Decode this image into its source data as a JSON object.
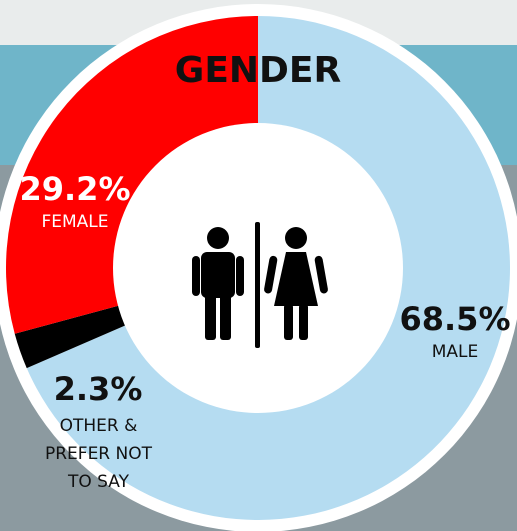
{
  "chart_data": {
    "type": "donut",
    "title": "GENDER",
    "categories": [
      "MALE",
      "OTHER & PREFER NOT TO SAY",
      "FEMALE"
    ],
    "values": [
      68.5,
      2.3,
      29.2
    ],
    "value_labels": [
      "68.5%",
      "2.3%",
      "29.2%"
    ],
    "colors": [
      "#b5dcf1",
      "#000000",
      "#ff0000"
    ]
  }
}
